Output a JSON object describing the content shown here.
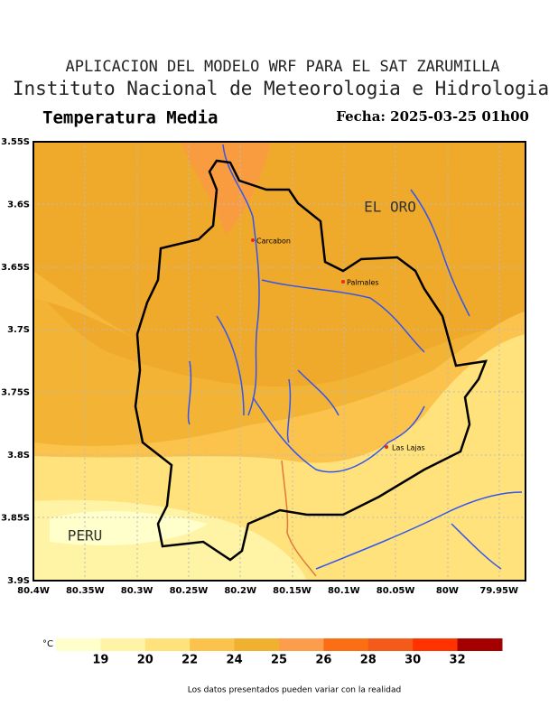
{
  "header": {
    "line1": "APLICACION DEL MODELO WRF PARA EL SAT ZARUMILLA",
    "line2": "Instituto Nacional de Meteorologia e Hidrologia",
    "variable": "Temperatura Media",
    "date": "Fecha: 2025-03-25 01h00"
  },
  "map": {
    "lat_labels": [
      "3.55S",
      "3.6S",
      "3.65S",
      "3.7S",
      "3.75S",
      "3.8S",
      "3.85S",
      "3.9S"
    ],
    "lon_labels": [
      "80.4W",
      "80.35W",
      "80.3W",
      "80.25W",
      "80.2W",
      "80.15W",
      "80.1W",
      "80.05W",
      "80W",
      "79.95W"
    ],
    "regions": [
      "EL ORO",
      "PERU"
    ],
    "places": [
      "Carcabon",
      "Palmales",
      "Las Lajas"
    ]
  },
  "colorbar": {
    "unit": "°C",
    "levels": [
      19,
      20,
      22,
      24,
      25,
      26,
      28,
      30,
      32
    ],
    "colors": [
      "#ffffcc",
      "#fff3a6",
      "#ffe27c",
      "#fbc24c",
      "#f0b030",
      "#fb9d4c",
      "#fc6e14",
      "#f45a1a",
      "#ff3200",
      "#a40000"
    ]
  },
  "footer": "Los datos presentados pueden variar con la realidad"
}
